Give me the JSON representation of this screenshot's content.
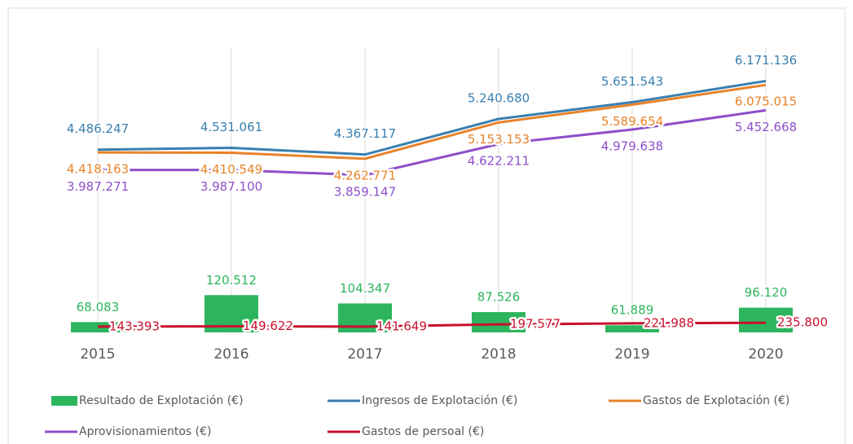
{
  "chart_data": {
    "type": "combo",
    "categories": [
      "2015",
      "2016",
      "2017",
      "2018",
      "2019",
      "2020"
    ],
    "ylim": [
      0,
      7000000
    ],
    "y2lim": [
      48000,
      603000
    ],
    "grid": true,
    "legend": "bottom",
    "series": [
      {
        "name": "Resultado de Explotación (€)",
        "type": "bar",
        "axis": "y2",
        "color": "#2db55d",
        "values": [
          68083,
          120512,
          104347,
          87526,
          61889,
          96120
        ],
        "value_labels": [
          "68.083",
          "120.512",
          "104.347",
          "87.526",
          "61.889",
          "96.120"
        ]
      },
      {
        "name": "Ingresos de Explotación (€)",
        "type": "line",
        "color": "#3a7fb0",
        "values": [
          4486247,
          4531061,
          4367117,
          5240680,
          5651543,
          6171136
        ],
        "value_labels": [
          "4.486.247",
          "4.531.061",
          "4.367.117",
          "5.240.680",
          "5.651.543",
          "6.171.136"
        ]
      },
      {
        "name": "Gastos de Explotación (€)",
        "type": "line",
        "color": "#e8832a",
        "values": [
          4418163,
          4410549,
          4262771,
          5153153,
          5589654,
          6075015
        ],
        "value_labels": [
          "4.418.163",
          "4.410.549",
          "4.262.771",
          "5.153.153",
          "5.589.654",
          "6.075.015"
        ]
      },
      {
        "name": "Aprovisionamientos (€)",
        "type": "line",
        "color": "#8e4fc9",
        "values": [
          3987271,
          3987100,
          3859147,
          4622211,
          4979638,
          5452668
        ],
        "value_labels": [
          "3.987.271",
          "3.987.100",
          "3.859.147",
          "4.622.211",
          "4.979.638",
          "5.452.668"
        ]
      },
      {
        "name": "Gastos de persoal (€)",
        "type": "line",
        "color": "#c8102e",
        "values": [
          143393,
          149622,
          141649,
          197577,
          221988,
          235800
        ],
        "value_labels": [
          "143.393",
          "149.622",
          "141.649",
          "197.577",
          "221.988",
          "235.800"
        ]
      }
    ]
  }
}
